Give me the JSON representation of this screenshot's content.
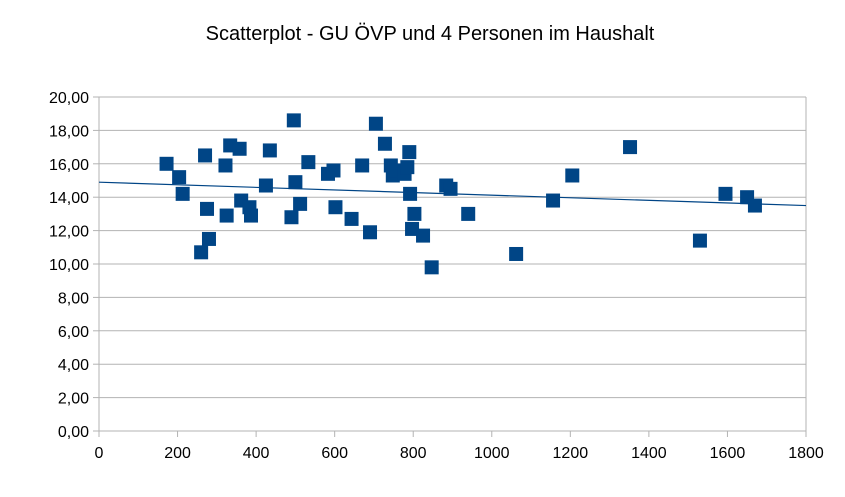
{
  "chart_data": {
    "type": "scatter",
    "title": "Scatterplot - GU ÖVP und 4 Personen im Haushalt",
    "xlabel": "",
    "ylabel": "",
    "xlim": [
      0,
      1800
    ],
    "ylim": [
      0,
      20
    ],
    "xticks": [
      0,
      200,
      400,
      600,
      800,
      1000,
      1200,
      1400,
      1600,
      1800
    ],
    "xtick_labels": [
      "0",
      "200",
      "400",
      "600",
      "800",
      "1000",
      "1200",
      "1400",
      "1600",
      "1800"
    ],
    "yticks": [
      0,
      2,
      4,
      6,
      8,
      10,
      12,
      14,
      16,
      18,
      20
    ],
    "ytick_labels": [
      "0,00",
      "2,00",
      "4,00",
      "6,00",
      "8,00",
      "10,00",
      "12,00",
      "14,00",
      "16,00",
      "18,00",
      "20,00"
    ],
    "grid": true,
    "legend": "none",
    "marker_color": "#004586",
    "trendline": {
      "color": "#004586",
      "x": [
        0,
        1800
      ],
      "y": [
        14.9,
        13.5
      ]
    },
    "points": [
      {
        "x": 172,
        "y": 16.0
      },
      {
        "x": 204,
        "y": 15.2
      },
      {
        "x": 213,
        "y": 14.2
      },
      {
        "x": 260,
        "y": 10.7
      },
      {
        "x": 270,
        "y": 16.5
      },
      {
        "x": 275,
        "y": 13.3
      },
      {
        "x": 280,
        "y": 11.5
      },
      {
        "x": 322,
        "y": 15.9
      },
      {
        "x": 325,
        "y": 12.9
      },
      {
        "x": 334,
        "y": 17.1
      },
      {
        "x": 358,
        "y": 16.9
      },
      {
        "x": 362,
        "y": 13.8
      },
      {
        "x": 383,
        "y": 13.4
      },
      {
        "x": 387,
        "y": 12.9
      },
      {
        "x": 425,
        "y": 14.7
      },
      {
        "x": 435,
        "y": 16.8
      },
      {
        "x": 490,
        "y": 12.8
      },
      {
        "x": 496,
        "y": 18.6
      },
      {
        "x": 500,
        "y": 14.9
      },
      {
        "x": 512,
        "y": 13.6
      },
      {
        "x": 533,
        "y": 16.1
      },
      {
        "x": 583,
        "y": 15.4
      },
      {
        "x": 597,
        "y": 15.6
      },
      {
        "x": 602,
        "y": 13.4
      },
      {
        "x": 643,
        "y": 12.7
      },
      {
        "x": 670,
        "y": 15.9
      },
      {
        "x": 690,
        "y": 11.9
      },
      {
        "x": 705,
        "y": 18.4
      },
      {
        "x": 728,
        "y": 17.2
      },
      {
        "x": 743,
        "y": 15.9
      },
      {
        "x": 748,
        "y": 15.3
      },
      {
        "x": 757,
        "y": 15.6
      },
      {
        "x": 778,
        "y": 15.4
      },
      {
        "x": 785,
        "y": 15.8
      },
      {
        "x": 790,
        "y": 16.7
      },
      {
        "x": 792,
        "y": 14.2
      },
      {
        "x": 797,
        "y": 12.1
      },
      {
        "x": 803,
        "y": 13.0
      },
      {
        "x": 825,
        "y": 11.7
      },
      {
        "x": 847,
        "y": 9.8
      },
      {
        "x": 884,
        "y": 14.7
      },
      {
        "x": 895,
        "y": 14.5
      },
      {
        "x": 940,
        "y": 13.0
      },
      {
        "x": 1062,
        "y": 10.6
      },
      {
        "x": 1156,
        "y": 13.8
      },
      {
        "x": 1205,
        "y": 15.3
      },
      {
        "x": 1352,
        "y": 17.0
      },
      {
        "x": 1530,
        "y": 11.4
      },
      {
        "x": 1595,
        "y": 14.2
      },
      {
        "x": 1650,
        "y": 14.0
      },
      {
        "x": 1670,
        "y": 13.5
      }
    ]
  }
}
